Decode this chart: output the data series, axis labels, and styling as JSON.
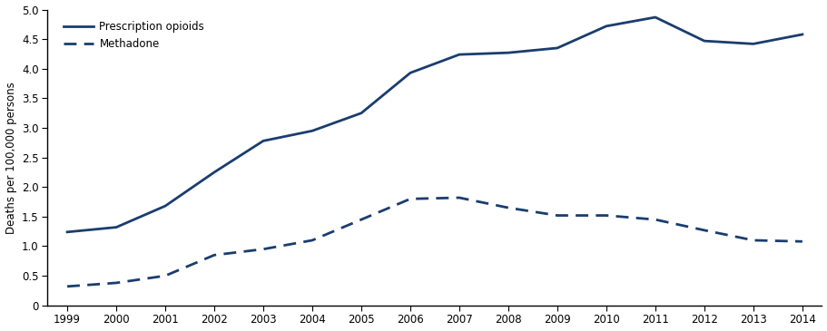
{
  "years": [
    1999,
    2000,
    2001,
    2002,
    2003,
    2004,
    2005,
    2006,
    2007,
    2008,
    2009,
    2010,
    2011,
    2012,
    2013,
    2014
  ],
  "prescription_opioids": [
    1.24,
    1.32,
    1.68,
    2.25,
    2.78,
    2.95,
    3.25,
    3.93,
    4.24,
    4.27,
    4.35,
    4.72,
    4.87,
    4.47,
    4.42,
    4.58
  ],
  "methadone": [
    0.32,
    0.38,
    0.5,
    0.85,
    0.95,
    1.1,
    1.45,
    1.8,
    1.82,
    1.65,
    1.52,
    1.52,
    1.45,
    1.27,
    1.1,
    1.08
  ],
  "line_color": "#1a3d6e",
  "ylabel": "Deaths per 100,000 persons",
  "ylim": [
    0,
    5.0
  ],
  "yticks": [
    0,
    0.5,
    1.0,
    1.5,
    2.0,
    2.5,
    3.0,
    3.5,
    4.0,
    4.5,
    5.0
  ],
  "ytick_labels": [
    "0",
    "0.5",
    "1.0",
    "1.5",
    "2.0",
    "2.5",
    "3.0",
    "3.5",
    "4.0",
    "4.5",
    "5.0"
  ],
  "legend_solid": "Prescription opioids",
  "legend_dashed": "Methadone",
  "linewidth": 2.0
}
